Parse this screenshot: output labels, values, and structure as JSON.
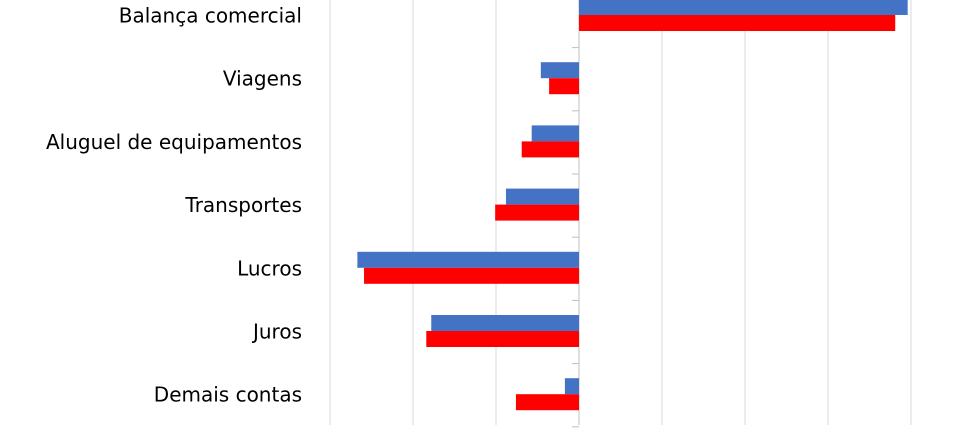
{
  "chart_data": {
    "type": "barh",
    "categories": [
      "Balança comercial",
      "Viagens",
      "Aluguel de equipamentos",
      "Transportes",
      "Lucros",
      "Juros",
      "Demais contas"
    ],
    "series": [
      {
        "color": "#4472c4",
        "values": [
          39.6,
          -4.6,
          -5.7,
          -8.8,
          -26.7,
          -17.8,
          -1.7
        ]
      },
      {
        "color": "#ff0000",
        "values": [
          38.1,
          -3.6,
          -6.9,
          -10.1,
          -25.9,
          -18.4,
          -7.6
        ]
      }
    ],
    "xlim": [
      -30,
      40
    ],
    "xticks": [
      -30,
      -20,
      -10,
      0,
      10,
      20,
      30,
      40
    ],
    "grid": true
  }
}
